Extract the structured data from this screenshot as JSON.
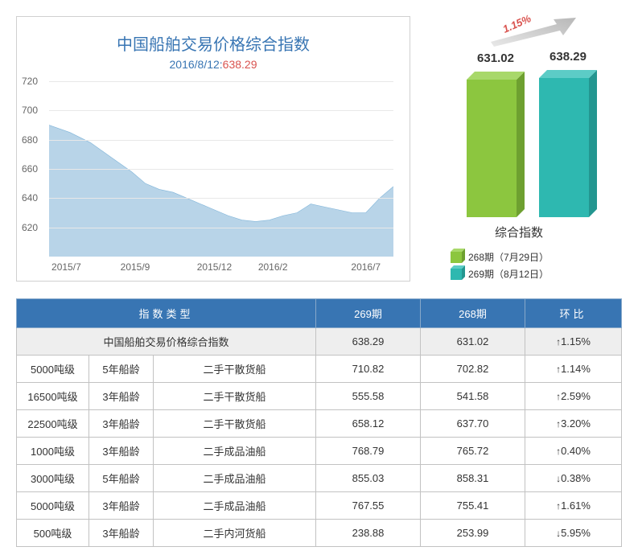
{
  "chart": {
    "title": "中国船舶交易价格综合指数",
    "subtitle_date": "2016/8/12:",
    "subtitle_value": "638.29",
    "title_color": "#3875b3",
    "value_color": "#d9534f",
    "y_min": 600,
    "y_max": 720,
    "x_ticks": [
      "2015/7",
      "2015/9",
      "2015/12",
      "2016/2",
      "2016/7"
    ],
    "x_tick_positions_pct": [
      5,
      25,
      48,
      65,
      92
    ],
    "y_ticks": [
      620,
      640,
      660,
      680,
      700,
      720
    ],
    "area_fill": "#b8d4e8",
    "area_stroke": "#7fb4d9",
    "grid_color": "#e8e8e8",
    "axis_text_color": "#666666",
    "background_color": "#ffffff",
    "points": [
      [
        0,
        690
      ],
      [
        6,
        685
      ],
      [
        12,
        678
      ],
      [
        18,
        668
      ],
      [
        24,
        658
      ],
      [
        28,
        650
      ],
      [
        32,
        646
      ],
      [
        36,
        644
      ],
      [
        40,
        640
      ],
      [
        44,
        636
      ],
      [
        48,
        632
      ],
      [
        52,
        628
      ],
      [
        56,
        625
      ],
      [
        60,
        624
      ],
      [
        64,
        625
      ],
      [
        68,
        628
      ],
      [
        72,
        630
      ],
      [
        76,
        636
      ],
      [
        80,
        634
      ],
      [
        84,
        632
      ],
      [
        88,
        630
      ],
      [
        92,
        630
      ],
      [
        96,
        640
      ],
      [
        100,
        648
      ]
    ]
  },
  "bars": {
    "pct_change": "1.15%",
    "pct_color": "#d9534f",
    "axis_label": "综合指数",
    "max_value": 700,
    "items": [
      {
        "value": 631.02,
        "label": "631.02",
        "color": "#8cc63f",
        "color_dark": "#6ea030",
        "color_light": "#a8d86a",
        "legend": "268期（7月29日）"
      },
      {
        "value": 638.29,
        "label": "638.29",
        "color": "#2eb8b0",
        "color_dark": "#239690",
        "color_light": "#5cccc6",
        "legend": "269期（8月12日）"
      }
    ]
  },
  "table": {
    "header_bg": "#3875b3",
    "header_fg": "#ffffff",
    "border_color": "#c2c2c2",
    "first_row_bg": "#eeeeee",
    "up_color": "#d9534f",
    "down_color": "#0288b8",
    "headers": {
      "type": "指数类型",
      "col_269": "269期",
      "col_268": "268期",
      "change": "环比"
    },
    "summary_row": {
      "label": "中国船舶交易价格综合指数",
      "v269": "638.29",
      "v268": "631.02",
      "change": "1.15%",
      "dir": "up"
    },
    "rows": [
      {
        "c1": "5000吨级",
        "c2": "5年船龄",
        "c3": "二手干散货船",
        "v269": "710.82",
        "v268": "702.82",
        "change": "1.14%",
        "dir": "up"
      },
      {
        "c1": "16500吨级",
        "c2": "3年船龄",
        "c3": "二手干散货船",
        "v269": "555.58",
        "v268": "541.58",
        "change": "2.59%",
        "dir": "up"
      },
      {
        "c1": "22500吨级",
        "c2": "3年船龄",
        "c3": "二手干散货船",
        "v269": "658.12",
        "v268": "637.70",
        "change": "3.20%",
        "dir": "up"
      },
      {
        "c1": "1000吨级",
        "c2": "3年船龄",
        "c3": "二手成品油船",
        "v269": "768.79",
        "v268": "765.72",
        "change": "0.40%",
        "dir": "up"
      },
      {
        "c1": "3000吨级",
        "c2": "5年船龄",
        "c3": "二手成品油船",
        "v269": "855.03",
        "v268": "858.31",
        "change": "0.38%",
        "dir": "down"
      },
      {
        "c1": "5000吨级",
        "c2": "3年船龄",
        "c3": "二手成品油船",
        "v269": "767.55",
        "v268": "755.41",
        "change": "1.61%",
        "dir": "up"
      },
      {
        "c1": "500吨级",
        "c2": "3年船龄",
        "c3": "二手内河货船",
        "v269": "238.88",
        "v268": "253.99",
        "change": "5.95%",
        "dir": "down"
      }
    ]
  }
}
